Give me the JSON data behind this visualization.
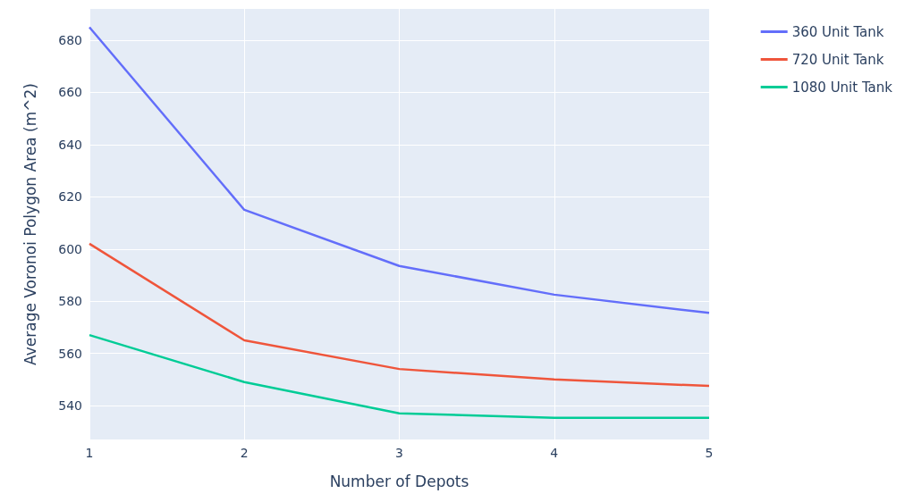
{
  "chart_data": {
    "type": "line",
    "xlabel": "Number of Depots",
    "ylabel": "Average Voronoi Polygon Area (m^2)",
    "x": [
      1,
      2,
      3,
      4,
      5
    ],
    "xlim": [
      1,
      5
    ],
    "xticks": [
      1,
      2,
      3,
      4,
      5
    ],
    "ylim": [
      527,
      692
    ],
    "yticks": [
      540,
      560,
      580,
      600,
      620,
      640,
      660,
      680
    ],
    "grid": true,
    "legend": "top right",
    "marker": "none",
    "line_style": "solid",
    "series": [
      {
        "name": "360 Unit Tank",
        "color": "#636efa",
        "values": [
          685,
          615,
          593.5,
          582.5,
          575.5
        ]
      },
      {
        "name": "720 Unit Tank",
        "color": "#ef553b",
        "values": [
          602,
          565,
          554,
          550,
          547.5
        ]
      },
      {
        "name": "1080 Unit Tank",
        "color": "#00cc96",
        "values": [
          567,
          549,
          537,
          535.3,
          535.3
        ]
      }
    ]
  }
}
